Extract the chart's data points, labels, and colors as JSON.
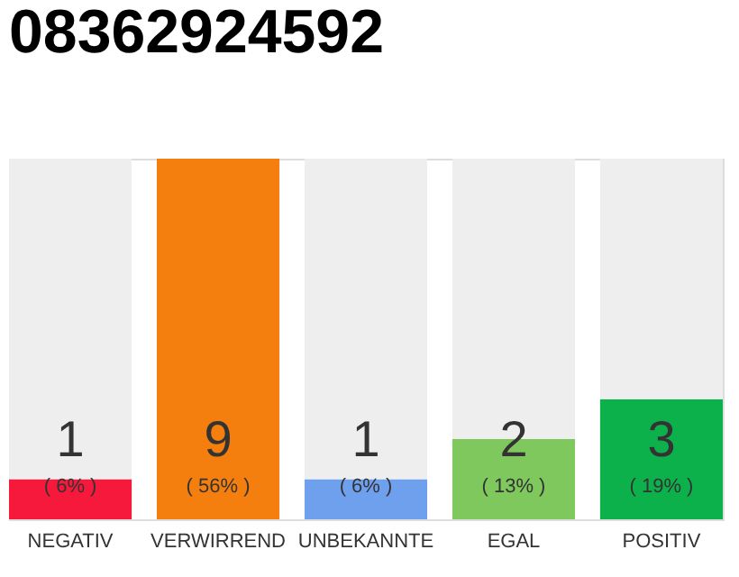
{
  "chart_data": {
    "type": "bar",
    "title": "08362924592",
    "categories": [
      "NEGATIV",
      "VERWIRREND",
      "UNBEKANNTE",
      "EGAL",
      "POSITIV"
    ],
    "stacked": true,
    "series": [
      {
        "colors": [
          "#f7193c",
          "#f47f0e",
          "#6fa0ee",
          "#7ec85e",
          "#0db14b"
        ],
        "values": [
          1,
          9,
          1,
          2,
          3
        ],
        "value_labels": [
          "1",
          "9",
          "1",
          "2",
          "3"
        ]
      },
      {
        "color": "#eeeeee",
        "values": [
          8,
          0,
          8,
          7,
          6
        ]
      }
    ],
    "annotations": [
      "( 6% )",
      "( 56% )",
      "( 6% )",
      "( 13% )",
      "( 19% )"
    ],
    "grid": false
  }
}
